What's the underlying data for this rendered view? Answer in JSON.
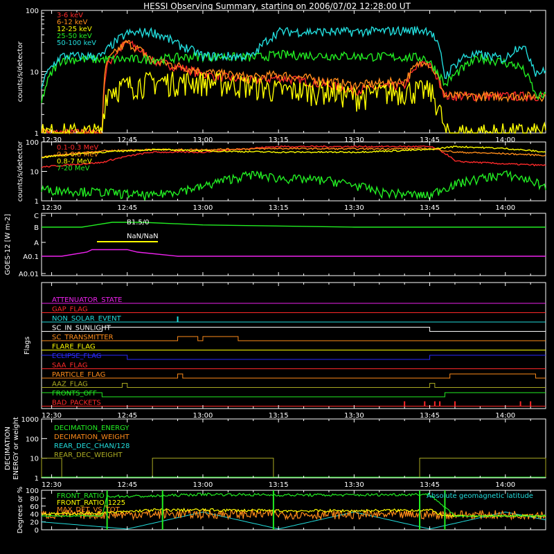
{
  "title": "HESSI Observing Summary, starting on 2006/07/02 12:28:00 UT",
  "colors": {
    "red": "#ff2a2a",
    "orange": "#ff8c1a",
    "yellow": "#ffff00",
    "green": "#22ee22",
    "cyan": "#22dddd",
    "magenta": "#ee22ee",
    "blue": "#2a2aff",
    "olive": "#aaaa22",
    "white": "#ffffff"
  },
  "chart_data": [
    {
      "type": "line",
      "name": "count-rates",
      "ylabel": "counts/s/detector",
      "yscale": "log",
      "ylim": [
        1,
        100
      ],
      "xlim": [
        "12:28",
        "14:08"
      ],
      "xticks": [
        "12:30",
        "12:45",
        "13:00",
        "13:15",
        "13:30",
        "13:45",
        "14:00"
      ],
      "yticks": [
        "1",
        "10",
        "100"
      ],
      "series": [
        {
          "name": "3-6 keV",
          "color": "#ff2a2a",
          "x": [
            "12:28",
            "12:32",
            "12:40",
            "12:41",
            "12:45",
            "12:50",
            "13:00",
            "13:10",
            "13:15",
            "13:25",
            "13:30",
            "13:40",
            "13:44",
            "13:48",
            "13:50",
            "13:55",
            "14:00",
            "14:05",
            "14:08"
          ],
          "y": [
            1,
            1,
            1,
            12,
            30,
            15,
            9,
            7,
            8,
            6,
            5,
            6,
            15,
            4,
            4,
            4,
            4,
            4,
            4
          ]
        },
        {
          "name": "6-12 keV",
          "color": "#ff8c1a",
          "x": [
            "12:28",
            "12:32",
            "12:40",
            "12:41",
            "12:45",
            "12:50",
            "13:00",
            "13:10",
            "13:15",
            "13:25",
            "13:30",
            "13:40",
            "13:44",
            "13:48",
            "14:00",
            "14:08"
          ],
          "y": [
            1,
            1,
            1,
            14,
            30,
            15,
            10,
            8,
            9,
            7,
            6,
            7,
            16,
            4,
            4,
            4
          ]
        },
        {
          "name": "12-25 keV",
          "color": "#ffff00",
          "x": [
            "12:28",
            "12:32",
            "12:40",
            "12:41",
            "12:45",
            "12:50",
            "13:00",
            "13:10",
            "13:15",
            "13:25",
            "13:30",
            "13:40",
            "13:45",
            "13:48",
            "14:00",
            "14:08"
          ],
          "y": [
            1,
            1,
            1,
            5,
            6,
            7,
            7,
            6,
            5,
            5,
            4,
            5,
            5,
            1,
            1,
            1
          ]
        },
        {
          "name": "25-50 keV",
          "color": "#22ee22",
          "x": [
            "12:28",
            "12:32",
            "12:40",
            "12:45",
            "12:50",
            "13:00",
            "13:10",
            "13:15",
            "13:30",
            "13:44",
            "13:48",
            "13:52",
            "13:55",
            "14:00",
            "14:03",
            "14:06",
            "14:08"
          ],
          "y": [
            3,
            16,
            16,
            16,
            16,
            18,
            17,
            19,
            18,
            17,
            6,
            12,
            17,
            14,
            12,
            4,
            4
          ]
        },
        {
          "name": "50-100 keV",
          "color": "#22dddd",
          "x": [
            "12:28",
            "12:32",
            "12:40",
            "12:45",
            "12:50",
            "12:55",
            "13:00",
            "13:10",
            "13:15",
            "13:30",
            "13:45",
            "13:48",
            "13:52",
            "13:55",
            "14:00",
            "14:03",
            "14:06",
            "14:08"
          ],
          "y": [
            6,
            18,
            18,
            42,
            45,
            28,
            18,
            18,
            45,
            45,
            48,
            8,
            18,
            19,
            16,
            28,
            10,
            10
          ]
        }
      ]
    },
    {
      "type": "line",
      "name": "high-energy-rates",
      "ylabel": "counts/s/detector",
      "yscale": "log",
      "ylim": [
        1,
        100
      ],
      "xlim": [
        "12:28",
        "14:08"
      ],
      "xticks": [
        "12:30",
        "12:45",
        "13:00",
        "13:15",
        "13:30",
        "13:45",
        "14:00"
      ],
      "yticks": [
        "1",
        "10",
        "100"
      ],
      "series": [
        {
          "name": "0.1-0.3 MeV",
          "color": "#ff2a2a",
          "x": [
            "12:28",
            "12:40",
            "12:50",
            "13:00",
            "13:15",
            "13:30",
            "13:45",
            "13:50",
            "14:00",
            "14:08"
          ],
          "y": [
            14,
            20,
            45,
            45,
            70,
            70,
            70,
            22,
            18,
            16
          ]
        },
        {
          "name": "0.3-0.8 MeV",
          "color": "#ff8c1a",
          "x": [
            "12:28",
            "12:40",
            "12:50",
            "13:00",
            "13:15",
            "13:30",
            "13:45",
            "13:50",
            "14:00",
            "14:08"
          ],
          "y": [
            30,
            50,
            55,
            55,
            60,
            58,
            60,
            45,
            40,
            35
          ]
        },
        {
          "name": "0.8-7 MeV",
          "color": "#ffff00",
          "x": [
            "12:28",
            "12:40",
            "12:50",
            "13:00",
            "13:15",
            "13:30",
            "13:45",
            "13:50",
            "14:00",
            "14:08"
          ],
          "y": [
            30,
            45,
            55,
            50,
            45,
            45,
            55,
            70,
            60,
            45
          ]
        },
        {
          "name": "7-20 MeV",
          "color": "#22ee22",
          "x": [
            "12:28",
            "12:40",
            "12:50",
            "13:00",
            "13:10",
            "13:15",
            "13:25",
            "13:35",
            "13:45",
            "14:00",
            "14:08"
          ],
          "y": [
            2.5,
            2,
            1.5,
            3,
            8,
            6,
            5,
            2,
            1.5,
            8,
            3
          ]
        }
      ]
    },
    {
      "type": "line",
      "name": "goes",
      "ylabel": "GOES-12 [W m-2]",
      "ylim": [
        "A0.01",
        "C"
      ],
      "yticks": [
        "C",
        "B",
        "A",
        "A0.1",
        "A0.01"
      ],
      "xlim": [
        "12:28",
        "14:08"
      ],
      "annotations": [
        "B1.5/0",
        "NaN/NaN"
      ],
      "series": [
        {
          "color": "#22ee22",
          "x": [
            "12:28",
            "12:36",
            "12:42",
            "12:48",
            "13:00",
            "13:30",
            "14:00",
            "14:08"
          ],
          "y": [
            "B",
            "B",
            "B1.5",
            "B1.5",
            "B1.2",
            "B",
            "B",
            "B"
          ]
        },
        {
          "color": "#ee22ee",
          "x": [
            "12:28",
            "12:32",
            "12:37",
            "12:38",
            "12:45",
            "12:47",
            "12:55",
            "14:08"
          ],
          "y": [
            "A0.1",
            "A0.1",
            "A0.2",
            "A0.3",
            "A0.3",
            "A0.2",
            "A0.1",
            "A0.1"
          ]
        }
      ]
    },
    {
      "type": "line",
      "name": "flags",
      "ylabel": "Flags",
      "xlim": [
        "12:28",
        "14:08"
      ],
      "xticks": [
        "12:30",
        "12:45",
        "13:00",
        "13:15",
        "13:30",
        "13:45",
        "14:00"
      ],
      "flags": [
        {
          "name": "ATTENUATOR_STATE",
          "color": "#ee22ee"
        },
        {
          "name": "GAP_FLAG",
          "color": "#ff2a2a"
        },
        {
          "name": "NON_SOLAR_EVENT",
          "color": "#22dddd"
        },
        {
          "name": "SC_IN_SUNLIGHT",
          "color": "#ffffff"
        },
        {
          "name": "SC_TRANSMITTER",
          "color": "#ff8c1a"
        },
        {
          "name": "FLARE_FLAG",
          "color": "#ffff00"
        },
        {
          "name": "ECLIPSE_FLAG",
          "color": "#2a2aff"
        },
        {
          "name": "SAA_FLAG",
          "color": "#ff2a2a"
        },
        {
          "name": "PARTICLE_FLAG",
          "color": "#ff8c1a"
        },
        {
          "name": "AAZ_FLAG",
          "color": "#aaaa22"
        },
        {
          "name": "FRONTS_OFF",
          "color": "#22ee22"
        },
        {
          "name": "BAD_PACKETS",
          "color": "#ff2a2a"
        }
      ]
    },
    {
      "type": "line",
      "name": "decimation",
      "ylabel": "DECIMATION ENERGY or weight",
      "yscale": "log",
      "ylim": [
        1,
        1000
      ],
      "yticks": [
        "1",
        "10",
        "100",
        "1000"
      ],
      "xlim": [
        "12:28",
        "14:08"
      ],
      "xticks": [
        "12:30",
        "12:45",
        "13:00",
        "13:15",
        "13:30",
        "13:45",
        "14:00"
      ],
      "series": [
        {
          "name": "DECIMATION_ENERGY",
          "color": "#22ee22"
        },
        {
          "name": "DECIMATION_WEIGHT",
          "color": "#ff8c1a"
        },
        {
          "name": "REAR_DEC_CHAN/128",
          "color": "#22dddd"
        },
        {
          "name": "REAR_DEC_WEIGHT",
          "color": "#aaaa22"
        }
      ]
    },
    {
      "type": "line",
      "name": "ratios",
      "ylabel": "Degrees or %",
      "ylim": [
        0,
        100
      ],
      "yticks": [
        "0",
        "20",
        "40",
        "60",
        "80",
        "100"
      ],
      "xlim": [
        "12:28",
        "14:08"
      ],
      "series": [
        {
          "name": "FRONT_RATIO",
          "color": "#22ee22",
          "x": [
            "12:28",
            "12:40",
            "12:41",
            "12:50",
            "13:00",
            "13:15",
            "13:30",
            "13:45",
            "13:50",
            "14:00",
            "14:08"
          ],
          "y": [
            35,
            35,
            85,
            85,
            90,
            88,
            88,
            90,
            35,
            35,
            35
          ]
        },
        {
          "name": "FRONT_RATIO_1225",
          "color": "#ffff00",
          "x": [
            "12:28",
            "12:40",
            "12:50",
            "13:00",
            "13:15",
            "13:30",
            "13:45",
            "13:48",
            "14:08"
          ],
          "y": [
            40,
            42,
            50,
            50,
            48,
            48,
            50,
            35,
            35
          ]
        },
        {
          "name": "MAX_DET_VS_TOT",
          "color": "#ff8c1a",
          "x": [
            "12:28",
            "13:00",
            "13:30",
            "14:08"
          ],
          "y": [
            38,
            40,
            38,
            38
          ]
        },
        {
          "name": "Absolute geomagnetic latitude",
          "color": "#22dddd",
          "x": [
            "12:28",
            "12:45",
            "13:00",
            "13:15",
            "13:30",
            "13:45",
            "14:00",
            "14:08"
          ],
          "y": [
            20,
            2,
            45,
            2,
            45,
            2,
            45,
            25
          ]
        }
      ]
    }
  ]
}
